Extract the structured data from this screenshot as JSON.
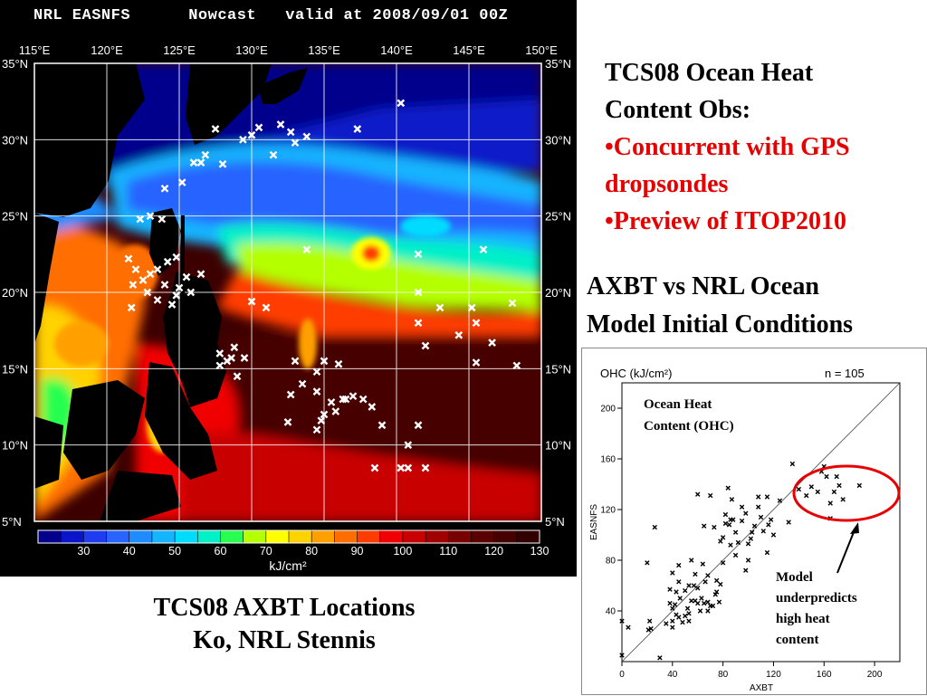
{
  "colors": {
    "highlight": "#e60000",
    "map_background": "#000000",
    "marker": "#ffffff"
  },
  "map": {
    "title": "NRL EASNFS      Nowcast   valid at 2008/09/01 00Z",
    "lon_labels": [
      "115°E",
      "120°E",
      "125°E",
      "130°E",
      "135°E",
      "140°E",
      "145°E",
      "150°E"
    ],
    "lat_labels": [
      "35°N",
      "30°N",
      "25°N",
      "20°N",
      "15°N",
      "10°N",
      "5°N"
    ],
    "colorbar_ticks": [
      "30",
      "40",
      "50",
      "60",
      "70",
      "80",
      "90",
      "100",
      "110",
      "120",
      "130"
    ],
    "colorbar_unit": "kJ/cm²",
    "colorbar_colors": [
      "#04008c",
      "#0a14c8",
      "#1e3cf0",
      "#2864ff",
      "#1e8cff",
      "#14b4ff",
      "#00dcff",
      "#00f0c8",
      "#28ff50",
      "#b4ff00",
      "#ffff00",
      "#ffd200",
      "#ffa000",
      "#ff6e00",
      "#ff3c00",
      "#f00000",
      "#c80000",
      "#a00000",
      "#780000",
      "#5a0000",
      "#460000",
      "#320000"
    ]
  },
  "caption_left": {
    "line1": "TCS08 AXBT Locations",
    "line2": "Ko, NRL Stennis"
  },
  "right_text": {
    "heading_line1": "TCS08 Ocean Heat",
    "heading_line2": "Content Obs:",
    "bullet1_line1": "•Concurrent with GPS",
    "bullet1_line2": "dropsondes",
    "bullet2": "•Preview of ITOP2010",
    "axbt_line1": "AXBT vs NRL Ocean",
    "axbt_line2": "Model Initial Conditions"
  },
  "chart_data": {
    "type": "scatter",
    "title": "OHC (kJ/cm²)",
    "n_label": "n = 105",
    "xlabel": "AXBT",
    "ylabel": "EASNFS",
    "xlim": [
      0,
      220
    ],
    "ylim": [
      0,
      220
    ],
    "xticks": [
      0,
      40,
      80,
      120,
      160,
      200
    ],
    "yticks": [
      40,
      80,
      120,
      160,
      200
    ],
    "inset_label_line1": "Ocean Heat",
    "inset_label_line2": "Content (OHC)",
    "annotation": [
      "Model",
      "underpredicts",
      "high heat",
      "content"
    ],
    "points": [
      [
        0,
        5
      ],
      [
        0,
        32
      ],
      [
        5,
        27
      ],
      [
        20,
        78
      ],
      [
        21,
        25
      ],
      [
        22,
        32
      ],
      [
        23,
        26
      ],
      [
        26,
        106
      ],
      [
        30,
        3
      ],
      [
        35,
        30
      ],
      [
        38,
        46
      ],
      [
        38,
        57
      ],
      [
        40,
        42
      ],
      [
        40,
        32
      ],
      [
        40,
        27
      ],
      [
        40,
        70
      ],
      [
        42,
        45
      ],
      [
        43,
        55
      ],
      [
        43,
        37
      ],
      [
        45,
        35
      ],
      [
        45,
        63
      ],
      [
        45,
        76
      ],
      [
        46,
        50
      ],
      [
        48,
        31
      ],
      [
        50,
        36
      ],
      [
        50,
        56
      ],
      [
        52,
        42
      ],
      [
        53,
        38
      ],
      [
        53,
        32
      ],
      [
        53,
        60
      ],
      [
        55,
        80
      ],
      [
        55,
        48
      ],
      [
        57,
        60
      ],
      [
        58,
        69
      ],
      [
        58,
        48
      ],
      [
        60,
        46
      ],
      [
        60,
        58
      ],
      [
        60,
        132
      ],
      [
        62,
        40
      ],
      [
        63,
        50
      ],
      [
        64,
        77
      ],
      [
        65,
        46
      ],
      [
        65,
        107
      ],
      [
        66,
        63
      ],
      [
        68,
        40
      ],
      [
        68,
        47
      ],
      [
        68,
        68
      ],
      [
        70,
        131
      ],
      [
        70,
        44
      ],
      [
        72,
        44
      ],
      [
        73,
        106
      ],
      [
        74,
        53
      ],
      [
        75,
        55
      ],
      [
        75,
        64
      ],
      [
        77,
        47
      ],
      [
        78,
        61
      ],
      [
        78,
        95
      ],
      [
        80,
        78
      ],
      [
        80,
        98
      ],
      [
        82,
        109
      ],
      [
        82,
        116
      ],
      [
        84,
        137
      ],
      [
        85,
        108
      ],
      [
        86,
        112
      ],
      [
        86,
        92
      ],
      [
        87,
        128
      ],
      [
        88,
        112
      ],
      [
        90,
        102
      ],
      [
        90,
        84
      ],
      [
        92,
        94
      ],
      [
        95,
        111
      ],
      [
        95,
        122
      ],
      [
        98,
        72
      ],
      [
        98,
        117
      ],
      [
        100,
        93
      ],
      [
        100,
        80
      ],
      [
        102,
        97
      ],
      [
        103,
        102
      ],
      [
        105,
        107
      ],
      [
        108,
        130
      ],
      [
        108,
        122
      ],
      [
        110,
        114
      ],
      [
        112,
        103
      ],
      [
        115,
        86
      ],
      [
        115,
        130
      ],
      [
        116,
        108
      ],
      [
        118,
        112
      ],
      [
        120,
        100
      ],
      [
        125,
        127
      ],
      [
        132,
        110
      ],
      [
        135,
        156
      ],
      [
        140,
        136
      ],
      [
        146,
        131
      ],
      [
        150,
        138
      ],
      [
        155,
        134
      ],
      [
        158,
        150
      ],
      [
        160,
        154
      ],
      [
        162,
        146
      ],
      [
        165,
        125
      ],
      [
        165,
        113
      ],
      [
        168,
        134
      ],
      [
        170,
        146
      ],
      [
        172,
        139
      ],
      [
        175,
        128
      ],
      [
        188,
        139
      ]
    ]
  }
}
